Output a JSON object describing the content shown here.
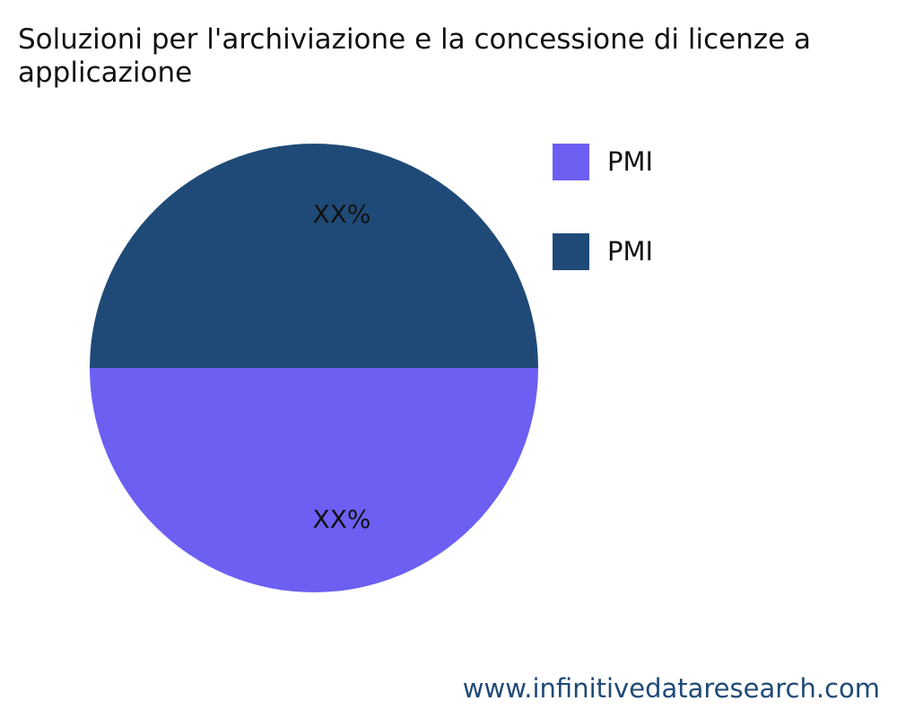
{
  "chart_data": {
    "type": "pie",
    "title_lines": [
      "Soluzioni per l'archiviazione e la concessione di licenze a",
      "applicazione"
    ],
    "slices": [
      {
        "label": "PMI",
        "value": 50,
        "display": "XX%",
        "color": "#6c5ff2"
      },
      {
        "label": "PMI",
        "value": 50,
        "display": "XX%",
        "color": "#1f4a77"
      }
    ],
    "legend_position": "right"
  },
  "footer": {
    "watermark": "www.infinitivedataresearch.com"
  }
}
